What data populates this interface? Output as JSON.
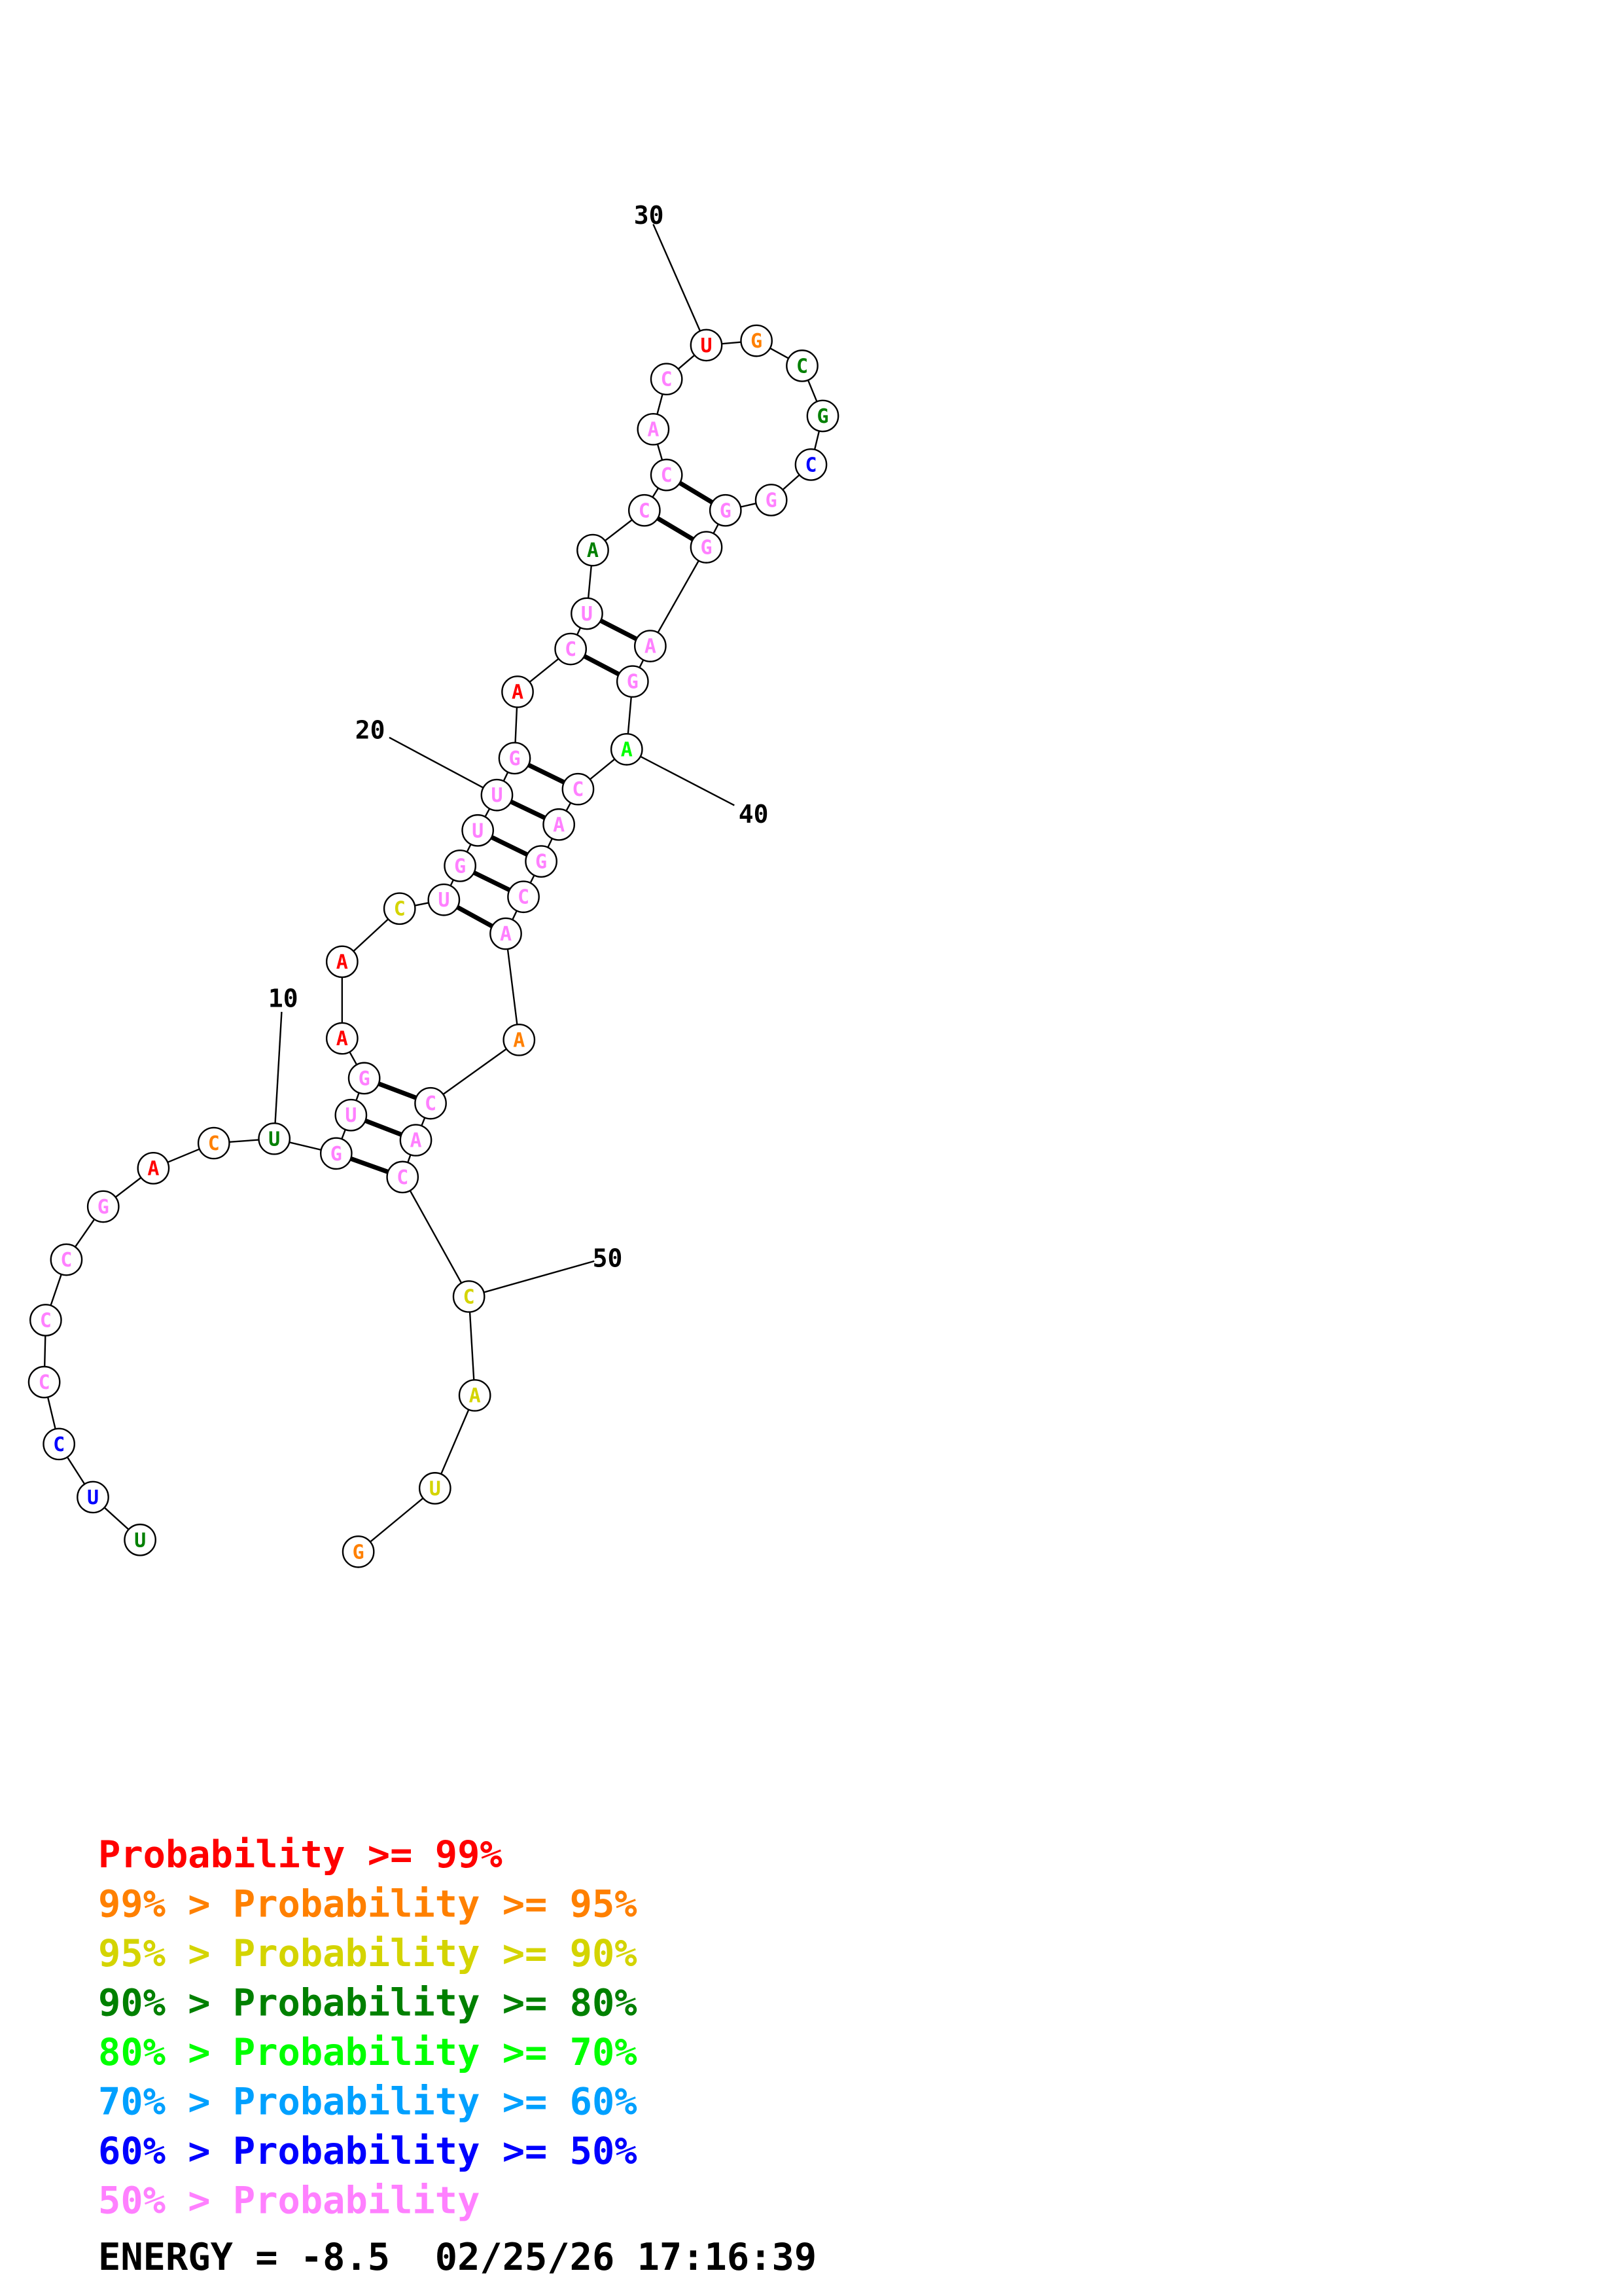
{
  "colors": {
    "p99": "#ff0000",
    "p95": "#ff8000",
    "p90": "#d4d400",
    "p80": "#008000",
    "p70": "#00ff00",
    "p60": "#00a0ff",
    "p50": "#0000ff",
    "plow": "#ff80ff"
  },
  "sequence": [
    {
      "n": 1,
      "base": "U",
      "p": "p80"
    },
    {
      "n": 2,
      "base": "U",
      "p": "p50"
    },
    {
      "n": 3,
      "base": "C",
      "p": "p50"
    },
    {
      "n": 4,
      "base": "C",
      "p": "plow"
    },
    {
      "n": 5,
      "base": "C",
      "p": "plow"
    },
    {
      "n": 6,
      "base": "C",
      "p": "plow"
    },
    {
      "n": 7,
      "base": "G",
      "p": "plow"
    },
    {
      "n": 8,
      "base": "A",
      "p": "p99"
    },
    {
      "n": 9,
      "base": "C",
      "p": "p95"
    },
    {
      "n": 10,
      "base": "U",
      "p": "p80"
    },
    {
      "n": 11,
      "base": "G",
      "p": "plow"
    },
    {
      "n": 12,
      "base": "U",
      "p": "plow"
    },
    {
      "n": 13,
      "base": "G",
      "p": "plow"
    },
    {
      "n": 14,
      "base": "A",
      "p": "p99"
    },
    {
      "n": 15,
      "base": "A",
      "p": "p99"
    },
    {
      "n": 16,
      "base": "C",
      "p": "p90"
    },
    {
      "n": 17,
      "base": "U",
      "p": "plow"
    },
    {
      "n": 18,
      "base": "G",
      "p": "plow"
    },
    {
      "n": 19,
      "base": "U",
      "p": "plow"
    },
    {
      "n": 20,
      "base": "U",
      "p": "plow"
    },
    {
      "n": 21,
      "base": "G",
      "p": "plow"
    },
    {
      "n": 22,
      "base": "A",
      "p": "p99"
    },
    {
      "n": 23,
      "base": "C",
      "p": "plow"
    },
    {
      "n": 24,
      "base": "U",
      "p": "plow"
    },
    {
      "n": 25,
      "base": "A",
      "p": "p80"
    },
    {
      "n": 26,
      "base": "C",
      "p": "plow"
    },
    {
      "n": 27,
      "base": "C",
      "p": "plow"
    },
    {
      "n": 28,
      "base": "A",
      "p": "plow"
    },
    {
      "n": 29,
      "base": "C",
      "p": "plow"
    },
    {
      "n": 30,
      "base": "U",
      "p": "p99"
    },
    {
      "n": 31,
      "base": "G",
      "p": "p95"
    },
    {
      "n": 32,
      "base": "C",
      "p": "p80"
    },
    {
      "n": 33,
      "base": "G",
      "p": "p80"
    },
    {
      "n": 34,
      "base": "C",
      "p": "p50"
    },
    {
      "n": 35,
      "base": "G",
      "p": "plow"
    },
    {
      "n": 36,
      "base": "G",
      "p": "plow"
    },
    {
      "n": 37,
      "base": "G",
      "p": "plow"
    },
    {
      "n": 38,
      "base": "A",
      "p": "plow"
    },
    {
      "n": 39,
      "base": "G",
      "p": "plow"
    },
    {
      "n": 40,
      "base": "A",
      "p": "p70"
    },
    {
      "n": 41,
      "base": "C",
      "p": "plow"
    },
    {
      "n": 42,
      "base": "A",
      "p": "plow"
    },
    {
      "n": 43,
      "base": "G",
      "p": "plow"
    },
    {
      "n": 44,
      "base": "C",
      "p": "plow"
    },
    {
      "n": 45,
      "base": "A",
      "p": "plow"
    },
    {
      "n": 46,
      "base": "A",
      "p": "p95"
    },
    {
      "n": 47,
      "base": "C",
      "p": "plow"
    },
    {
      "n": 48,
      "base": "A",
      "p": "plow"
    },
    {
      "n": 49,
      "base": "C",
      "p": "plow"
    },
    {
      "n": 50,
      "base": "C",
      "p": "p90"
    },
    {
      "n": 51,
      "base": "A",
      "p": "p90"
    },
    {
      "n": 52,
      "base": "U",
      "p": "p90"
    },
    {
      "n": 53,
      "base": "G",
      "p": "p95"
    }
  ],
  "pairs": [
    [
      11,
      49
    ],
    [
      12,
      48
    ],
    [
      13,
      47
    ],
    [
      17,
      45
    ],
    [
      18,
      44
    ],
    [
      19,
      43
    ],
    [
      20,
      42
    ],
    [
      21,
      41
    ],
    [
      23,
      39
    ],
    [
      24,
      38
    ],
    [
      26,
      37
    ],
    [
      27,
      36
    ]
  ],
  "index_labels": [
    {
      "n": 10,
      "text": "10"
    },
    {
      "n": 20,
      "text": "20"
    },
    {
      "n": 30,
      "text": "30"
    },
    {
      "n": 40,
      "text": "40"
    },
    {
      "n": 50,
      "text": "50"
    }
  ],
  "legend": [
    {
      "text": "       Probability >= 99%",
      "color": "p99"
    },
    {
      "text": "99% > Probability >= 95%",
      "color": "p95"
    },
    {
      "text": "95% > Probability >= 90%",
      "color": "p90"
    },
    {
      "text": "90% > Probability >= 80%",
      "color": "p80"
    },
    {
      "text": "80% > Probability >= 70%",
      "color": "p70"
    },
    {
      "text": "70% > Probability >= 60%",
      "color": "p60"
    },
    {
      "text": "60% > Probability >= 50%",
      "color": "p50"
    },
    {
      "text": "50% > Probability",
      "color": "plow"
    }
  ],
  "energy_line": "ENERGY = -8.5  02/25/26 17:16:39"
}
